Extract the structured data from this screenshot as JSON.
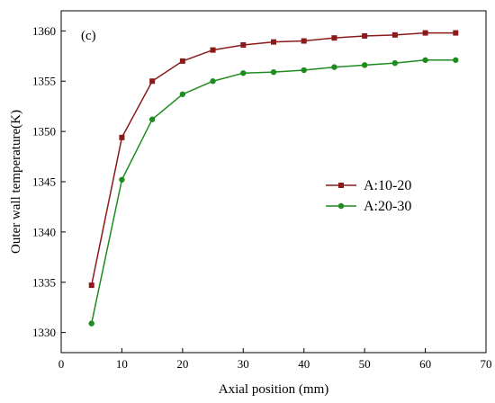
{
  "chart_data": {
    "type": "line",
    "panel_label": "(c)",
    "xlabel": "Axial position (mm)",
    "ylabel": "Outer wall temperature(K)",
    "xlim": [
      0,
      70
    ],
    "ylim": [
      1328,
      1362
    ],
    "xticks": [
      0,
      10,
      20,
      30,
      40,
      50,
      60,
      70
    ],
    "yticks": [
      1330,
      1335,
      1340,
      1345,
      1350,
      1355,
      1360
    ],
    "grid": false,
    "legend_position": "right",
    "x": [
      5,
      10,
      15,
      20,
      25,
      30,
      35,
      40,
      45,
      50,
      55,
      60,
      65
    ],
    "series": [
      {
        "name": "A:10-20",
        "color": "#8B1A1A",
        "marker": "square",
        "values": [
          1334.7,
          1349.4,
          1355.0,
          1357.0,
          1358.1,
          1358.6,
          1358.9,
          1359.0,
          1359.3,
          1359.5,
          1359.6,
          1359.8,
          1359.8
        ]
      },
      {
        "name": "A:20-30",
        "color": "#1E8C1E",
        "marker": "circle",
        "values": [
          1330.9,
          1345.2,
          1351.2,
          1353.7,
          1355.0,
          1355.8,
          1355.9,
          1356.1,
          1356.4,
          1356.6,
          1356.8,
          1357.1,
          1357.1
        ]
      }
    ]
  }
}
